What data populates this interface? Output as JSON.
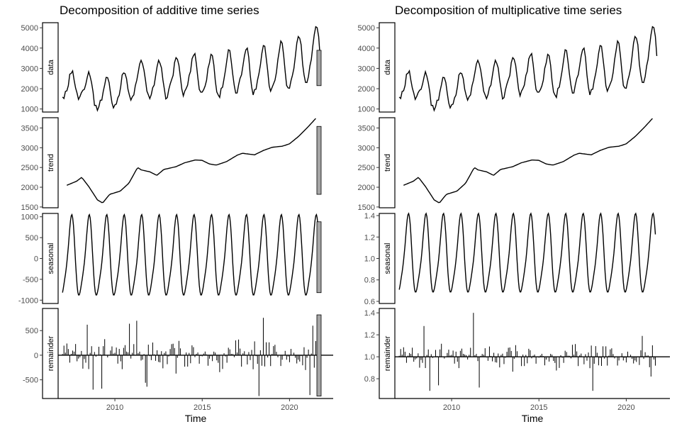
{
  "chart_data": [
    {
      "type": "line",
      "title": "Decomposition of additive time series",
      "xlabel": "Time",
      "x_ticks": [
        2010,
        2015,
        2020
      ],
      "xlim": [
        2006.75,
        2022.5
      ],
      "colors": {
        "line": "#000000",
        "bar_fill": "#a6a6a6",
        "strip_border": "#000000"
      },
      "panels": [
        {
          "name": "data",
          "ylim": [
            850,
            5250
          ],
          "yticks": [
            "1000",
            "2000",
            "3000",
            "4000",
            "5000"
          ],
          "ytick_values": [
            1000,
            2000,
            3000,
            4000,
            5000
          ],
          "scale_bar": [
            2150,
            3890
          ],
          "kind": "line",
          "baseline": null,
          "trend_knots": [
            [
              2007.25,
              2050
            ],
            [
              2007.8,
              2150
            ],
            [
              2008.1,
              2250
            ],
            [
              2008.5,
              2020
            ],
            [
              2009.0,
              1680
            ],
            [
              2009.3,
              1600
            ],
            [
              2009.7,
              1820
            ],
            [
              2010.3,
              1900
            ],
            [
              2010.8,
              2100
            ],
            [
              2011.3,
              2500
            ],
            [
              2011.5,
              2440
            ],
            [
              2012.0,
              2390
            ],
            [
              2012.4,
              2300
            ],
            [
              2012.8,
              2450
            ],
            [
              2013.5,
              2520
            ],
            [
              2014.0,
              2620
            ],
            [
              2014.6,
              2690
            ],
            [
              2015.0,
              2680
            ],
            [
              2015.4,
              2590
            ],
            [
              2015.8,
              2560
            ],
            [
              2016.4,
              2650
            ],
            [
              2017.0,
              2810
            ],
            [
              2017.3,
              2860
            ],
            [
              2018.0,
              2820
            ],
            [
              2018.5,
              2930
            ],
            [
              2019.0,
              3010
            ],
            [
              2019.6,
              3040
            ],
            [
              2020.0,
              3100
            ],
            [
              2020.5,
              3280
            ],
            [
              2021.0,
              3500
            ],
            [
              2021.5,
              3740
            ]
          ],
          "seasonal_shape": [
            0.05,
            0.3,
            0.65,
            0.95,
            1.0,
            0.6,
            0.3,
            -0.05,
            -0.4,
            -0.7,
            -0.9,
            -1.0
          ],
          "seasonal_amp": [
            700,
            1350
          ],
          "noise": 260
        },
        {
          "name": "trend",
          "ylim": [
            1480,
            3760
          ],
          "yticks": [
            "1500",
            "2000",
            "2500",
            "3000",
            "3500"
          ],
          "ytick_values": [
            1500,
            2000,
            2500,
            3000,
            3500
          ],
          "scale_bar": [
            1820,
            3540
          ],
          "kind": "line",
          "baseline": null,
          "knots": [
            [
              2007.25,
              2050
            ],
            [
              2007.8,
              2150
            ],
            [
              2008.1,
              2250
            ],
            [
              2008.5,
              2020
            ],
            [
              2009.0,
              1680
            ],
            [
              2009.3,
              1600
            ],
            [
              2009.7,
              1820
            ],
            [
              2010.3,
              1900
            ],
            [
              2010.8,
              2100
            ],
            [
              2011.3,
              2500
            ],
            [
              2011.5,
              2440
            ],
            [
              2012.0,
              2390
            ],
            [
              2012.4,
              2300
            ],
            [
              2012.8,
              2450
            ],
            [
              2013.5,
              2520
            ],
            [
              2014.0,
              2620
            ],
            [
              2014.6,
              2690
            ],
            [
              2015.0,
              2680
            ],
            [
              2015.4,
              2590
            ],
            [
              2015.8,
              2560
            ],
            [
              2016.4,
              2650
            ],
            [
              2017.0,
              2810
            ],
            [
              2017.3,
              2860
            ],
            [
              2018.0,
              2820
            ],
            [
              2018.5,
              2930
            ],
            [
              2019.0,
              3010
            ],
            [
              2019.6,
              3040
            ],
            [
              2020.0,
              3100
            ],
            [
              2020.5,
              3280
            ],
            [
              2021.0,
              3500
            ],
            [
              2021.5,
              3740
            ]
          ]
        },
        {
          "name": "seasonal",
          "ylim": [
            -1080,
            1080
          ],
          "yticks": [
            "1000",
            "500",
            "0",
            "-500",
            "-1000"
          ],
          "ytick_values": [
            1000,
            500,
            0,
            -500,
            -1000
          ],
          "scale_bar": [
            -820,
            880
          ],
          "kind": "seasonal",
          "baseline": null,
          "start": 2007.0,
          "end": 2021.67,
          "amp": 1000,
          "base": 0
        },
        {
          "name": "remainder",
          "ylim": [
            -880,
            950
          ],
          "yticks": [
            "500",
            "0",
            "-500"
          ],
          "ytick_values": [
            500,
            0,
            -500
          ],
          "scale_bar": [
            -830,
            820
          ],
          "kind": "bars",
          "baseline": 0,
          "start": 2007.0,
          "end": 2021.67,
          "spread": 330,
          "spikes": [
            [
              2008.4,
              620
            ],
            [
              2008.75,
              -700
            ],
            [
              2009.25,
              -680
            ],
            [
              2010.8,
              640
            ],
            [
              2011.25,
              700
            ],
            [
              2011.75,
              -560
            ],
            [
              2011.85,
              -640
            ],
            [
              2018.25,
              -830
            ],
            [
              2018.5,
              760
            ],
            [
              2021.2,
              -810
            ],
            [
              2021.33,
              600
            ]
          ]
        }
      ]
    },
    {
      "type": "line",
      "title": "Decomposition of multiplicative time series",
      "xlabel": "Time",
      "x_ticks": [
        2010,
        2015,
        2020
      ],
      "xlim": [
        2006.75,
        2022.5
      ],
      "colors": {
        "line": "#000000",
        "bar_fill": "#a6a6a6",
        "strip_border": "#000000"
      },
      "panels": [
        {
          "name": "data",
          "ylim": [
            850,
            5250
          ],
          "yticks": [
            "1000",
            "2000",
            "3000",
            "4000",
            "5000"
          ],
          "ytick_values": [
            1000,
            2000,
            3000,
            4000,
            5000
          ],
          "scale_bar": null,
          "kind": "line",
          "baseline": null,
          "trend_knots": [
            [
              2007.25,
              2050
            ],
            [
              2007.8,
              2150
            ],
            [
              2008.1,
              2250
            ],
            [
              2008.5,
              2020
            ],
            [
              2009.0,
              1680
            ],
            [
              2009.3,
              1600
            ],
            [
              2009.7,
              1820
            ],
            [
              2010.3,
              1900
            ],
            [
              2010.8,
              2100
            ],
            [
              2011.3,
              2500
            ],
            [
              2011.5,
              2440
            ],
            [
              2012.0,
              2390
            ],
            [
              2012.4,
              2300
            ],
            [
              2012.8,
              2450
            ],
            [
              2013.5,
              2520
            ],
            [
              2014.0,
              2620
            ],
            [
              2014.6,
              2690
            ],
            [
              2015.0,
              2680
            ],
            [
              2015.4,
              2590
            ],
            [
              2015.8,
              2560
            ],
            [
              2016.4,
              2650
            ],
            [
              2017.0,
              2810
            ],
            [
              2017.3,
              2860
            ],
            [
              2018.0,
              2820
            ],
            [
              2018.5,
              2930
            ],
            [
              2019.0,
              3010
            ],
            [
              2019.6,
              3040
            ],
            [
              2020.0,
              3100
            ],
            [
              2020.5,
              3280
            ],
            [
              2021.0,
              3500
            ],
            [
              2021.5,
              3740
            ]
          ],
          "seasonal_shape": [
            0.05,
            0.3,
            0.65,
            0.95,
            1.0,
            0.6,
            0.3,
            -0.05,
            -0.4,
            -0.7,
            -0.9,
            -1.0
          ],
          "seasonal_amp": [
            700,
            1350
          ],
          "noise": 260
        },
        {
          "name": "trend",
          "ylim": [
            1480,
            3760
          ],
          "yticks": [
            "1500",
            "2000",
            "2500",
            "3000",
            "3500"
          ],
          "ytick_values": [
            1500,
            2000,
            2500,
            3000,
            3500
          ],
          "scale_bar": null,
          "kind": "line",
          "baseline": null,
          "knots": [
            [
              2007.25,
              2050
            ],
            [
              2007.8,
              2150
            ],
            [
              2008.1,
              2250
            ],
            [
              2008.5,
              2020
            ],
            [
              2009.0,
              1680
            ],
            [
              2009.3,
              1600
            ],
            [
              2009.7,
              1820
            ],
            [
              2010.3,
              1900
            ],
            [
              2010.8,
              2100
            ],
            [
              2011.3,
              2500
            ],
            [
              2011.5,
              2440
            ],
            [
              2012.0,
              2390
            ],
            [
              2012.4,
              2300
            ],
            [
              2012.8,
              2450
            ],
            [
              2013.5,
              2520
            ],
            [
              2014.0,
              2620
            ],
            [
              2014.6,
              2690
            ],
            [
              2015.0,
              2680
            ],
            [
              2015.4,
              2590
            ],
            [
              2015.8,
              2560
            ],
            [
              2016.4,
              2650
            ],
            [
              2017.0,
              2810
            ],
            [
              2017.3,
              2860
            ],
            [
              2018.0,
              2820
            ],
            [
              2018.5,
              2930
            ],
            [
              2019.0,
              3010
            ],
            [
              2019.6,
              3040
            ],
            [
              2020.0,
              3100
            ],
            [
              2020.5,
              3280
            ],
            [
              2021.0,
              3500
            ],
            [
              2021.5,
              3740
            ]
          ]
        },
        {
          "name": "seasonal",
          "ylim": [
            0.58,
            1.42
          ],
          "yticks": [
            "1.4",
            "1.2",
            "1.0",
            "0.8",
            "0.6"
          ],
          "ytick_values": [
            1.4,
            1.2,
            1.0,
            0.8,
            0.6
          ],
          "scale_bar": null,
          "kind": "seasonal",
          "baseline": null,
          "start": 2007.0,
          "end": 2021.67,
          "amp": 0.38,
          "base": 1.02
        },
        {
          "name": "remainder",
          "ylim": [
            0.62,
            1.44
          ],
          "yticks": [
            "1.4",
            "1.2",
            "1.0",
            "0.8"
          ],
          "ytick_values": [
            1.4,
            1.2,
            1.0,
            0.8
          ],
          "scale_bar": null,
          "kind": "bars",
          "baseline": 1.0,
          "start": 2007.0,
          "end": 2021.67,
          "spread": 0.12,
          "spikes": [
            [
              2008.4,
              1.28
            ],
            [
              2008.75,
              0.69
            ],
            [
              2009.25,
              0.74
            ],
            [
              2011.25,
              1.4
            ],
            [
              2011.6,
              0.72
            ],
            [
              2018.1,
              0.69
            ],
            [
              2020.9,
              1.19
            ],
            [
              2021.4,
              0.82
            ]
          ]
        }
      ]
    }
  ]
}
